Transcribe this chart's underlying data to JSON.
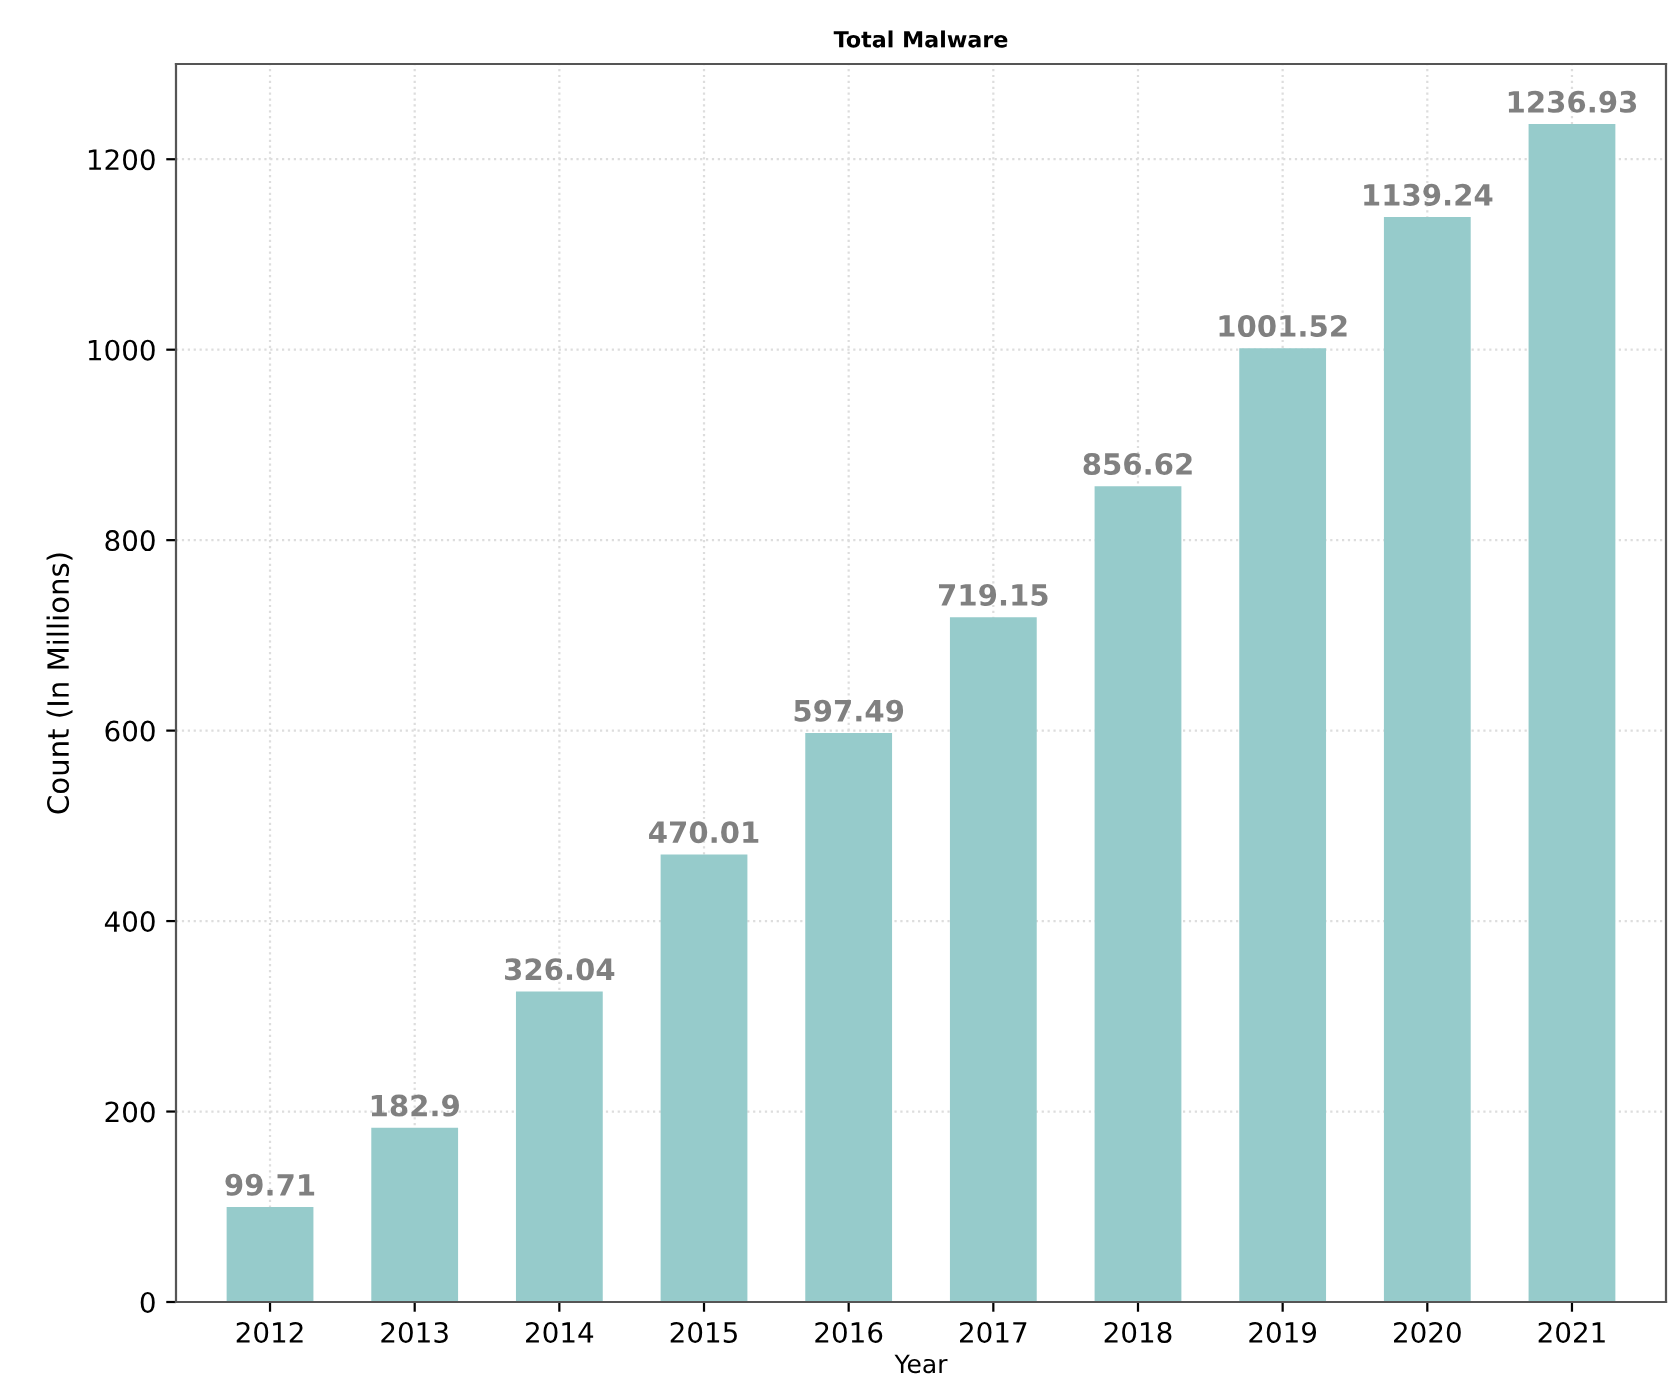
{
  "chart_data": {
    "type": "bar",
    "title": "Total Malware",
    "xlabel": "Year",
    "ylabel": "Count (In Millions)",
    "categories": [
      "2012",
      "2013",
      "2014",
      "2015",
      "2016",
      "2017",
      "2018",
      "2019",
      "2020",
      "2021"
    ],
    "values": [
      99.71,
      182.9,
      326.04,
      470.01,
      597.49,
      719.15,
      856.62,
      1001.52,
      1139.24,
      1236.93
    ],
    "color": "#96cbcb",
    "ylim": [
      0,
      1300
    ],
    "yticks": [
      0,
      200,
      400,
      600,
      800,
      1000,
      1200
    ],
    "grid": true,
    "data_labels": true
  }
}
